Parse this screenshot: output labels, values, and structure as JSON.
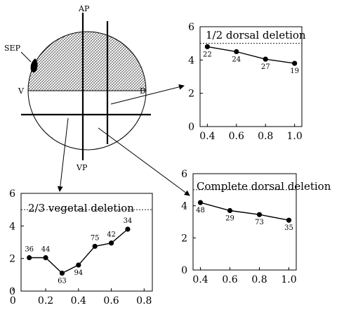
{
  "diagram": {
    "labels": {
      "ap": "AP",
      "vp": "VP",
      "v": "V",
      "d": "D",
      "sep": "SEP"
    }
  },
  "chart_data": [
    {
      "type": "line",
      "title": "1/2 dorsal deletion",
      "x": [
        0.4,
        0.6,
        0.8,
        1.0
      ],
      "y": [
        4.8,
        4.5,
        4.05,
        3.8
      ],
      "n": [
        "22",
        "24",
        "27",
        "19"
      ],
      "reference_line": 5,
      "xlim": [
        0.35,
        1.05
      ],
      "ylim": [
        0,
        6
      ],
      "xticks": [
        "0.4",
        "0.6",
        "0.8",
        "1.0"
      ],
      "yticks": [
        "0",
        "2",
        "4",
        "6"
      ],
      "grid": false
    },
    {
      "type": "line",
      "title": "Complete dorsal deletion",
      "x": [
        0.4,
        0.6,
        0.8,
        1.0
      ],
      "y": [
        4.2,
        3.7,
        3.45,
        3.1
      ],
      "n": [
        "48",
        "29",
        "73",
        "35"
      ],
      "reference_line": 5,
      "xlim": [
        0.35,
        1.05
      ],
      "ylim": [
        0,
        6
      ],
      "xticks": [
        "0.4",
        "0.6",
        "0.8",
        "1.0"
      ],
      "yticks": [
        "0",
        "2",
        "4",
        "6"
      ],
      "grid": false
    },
    {
      "type": "line",
      "title": "2/3 vegetal deletion",
      "x": [
        0.1,
        0.2,
        0.3,
        0.4,
        0.5,
        0.6,
        0.7
      ],
      "y": [
        2.05,
        2.05,
        1.1,
        1.6,
        2.75,
        2.95,
        3.8
      ],
      "n": [
        "36",
        "44",
        "63",
        "94",
        "75",
        "42",
        "34"
      ],
      "reference_line": 5,
      "xlim": [
        0.05,
        0.85
      ],
      "ylim": [
        0,
        6
      ],
      "xticks": [
        "0",
        "0.2",
        "0.4",
        "0.6",
        "0.8"
      ],
      "yticks": [
        "0",
        "2",
        "4",
        "6"
      ],
      "grid": false
    }
  ]
}
